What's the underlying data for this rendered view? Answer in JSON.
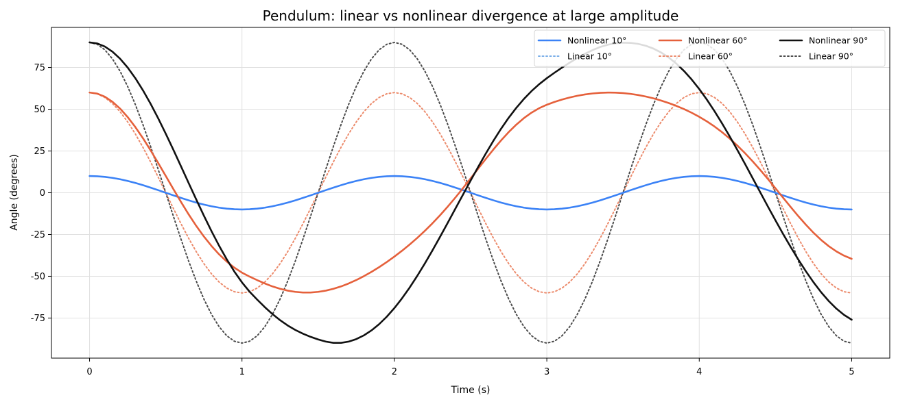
{
  "chart_data": {
    "type": "line",
    "title": "Pendulum: linear vs nonlinear divergence at large amplitude",
    "xlabel": "Time (s)",
    "ylabel": "Angle (degrees)",
    "xlim": [
      -0.25,
      5.25
    ],
    "ylim": [
      -99,
      99
    ],
    "x_ticks": [
      0,
      1,
      2,
      3,
      4,
      5
    ],
    "y_ticks": [
      -75,
      -50,
      -25,
      0,
      25,
      50,
      75
    ],
    "x_tick_labels": [
      "0",
      "1",
      "2",
      "3",
      "4",
      "5"
    ],
    "y_tick_labels": [
      "-75",
      "-50",
      "-25",
      "0",
      "25",
      "50",
      "75"
    ],
    "grid": true,
    "legend": {
      "placement": "top-right",
      "columns": 3
    },
    "time_step": 0.05,
    "series": [
      {
        "name": "Nonlinear 10°",
        "style": "solid",
        "color": "#3b82f6",
        "values": [
          10.0,
          9.88,
          9.51,
          8.91,
          8.09,
          7.07,
          5.88,
          4.54,
          3.09,
          1.56,
          0.0,
          -1.56,
          -3.09,
          -4.54,
          -5.88,
          -7.07,
          -8.09,
          -8.91,
          -9.51,
          -9.88,
          -10.0,
          -9.88,
          -9.51,
          -8.91,
          -8.09,
          -7.07,
          -5.88,
          -4.54,
          -3.09,
          -1.56,
          0.0,
          1.56,
          3.09,
          4.54,
          5.88,
          7.07,
          8.09,
          8.91,
          9.51,
          9.88,
          10.0,
          9.88,
          9.51,
          8.91,
          8.09,
          7.07,
          5.88,
          4.54,
          3.09,
          1.56,
          0.0,
          -1.56,
          -3.09,
          -4.54,
          -5.88,
          -7.07,
          -8.09,
          -8.91,
          -9.51,
          -9.88,
          -10.0,
          -9.88,
          -9.51,
          -8.91,
          -8.09,
          -7.07,
          -5.88,
          -4.54,
          -3.09,
          -1.56,
          0.0,
          1.56,
          3.09,
          4.54,
          5.88,
          7.07,
          8.09,
          8.91,
          9.51,
          9.88,
          10.0,
          9.88,
          9.51,
          8.91,
          8.09,
          7.07,
          5.88,
          4.54,
          3.09,
          1.56,
          0.0,
          -1.56,
          -3.09,
          -4.54,
          -5.88,
          -7.07,
          -8.09,
          -8.91,
          -9.51,
          -9.88,
          -10.0
        ]
      },
      {
        "name": "Linear 10°",
        "style": "dotted",
        "color": "#7aaee8",
        "values": [
          10.0,
          9.88,
          9.51,
          8.91,
          8.09,
          7.07,
          5.88,
          4.54,
          3.09,
          1.56,
          0.0,
          -1.56,
          -3.09,
          -4.54,
          -5.88,
          -7.07,
          -8.09,
          -8.91,
          -9.51,
          -9.88,
          -10.0,
          -9.88,
          -9.51,
          -8.91,
          -8.09,
          -7.07,
          -5.88,
          -4.54,
          -3.09,
          -1.56,
          0.0,
          1.56,
          3.09,
          4.54,
          5.88,
          7.07,
          8.09,
          8.91,
          9.51,
          9.88,
          10.0,
          9.88,
          9.51,
          8.91,
          8.09,
          7.07,
          5.88,
          4.54,
          3.09,
          1.56,
          0.0,
          -1.56,
          -3.09,
          -4.54,
          -5.88,
          -7.07,
          -8.09,
          -8.91,
          -9.51,
          -9.88,
          -10.0,
          -9.88,
          -9.51,
          -8.91,
          -8.09,
          -7.07,
          -5.88,
          -4.54,
          -3.09,
          -1.56,
          0.0,
          1.56,
          3.09,
          4.54,
          5.88,
          7.07,
          8.09,
          8.91,
          9.51,
          9.88,
          10.0,
          9.88,
          9.51,
          8.91,
          8.09,
          7.07,
          5.88,
          4.54,
          3.09,
          1.56,
          0.0,
          -1.56,
          -3.09,
          -4.54,
          -5.88,
          -7.07,
          -8.09,
          -8.91,
          -9.51,
          -9.88,
          -10.0
        ]
      },
      {
        "name": "Nonlinear 60°",
        "style": "solid",
        "color": "#e5603b",
        "values": [
          60.0,
          59.38,
          57.53,
          54.51,
          50.41,
          45.32,
          39.37,
          32.7,
          25.47,
          17.86,
          10.03,
          2.18,
          -5.52,
          -12.92,
          -19.85,
          -26.17,
          -31.86,
          -36.87,
          -41.19,
          -44.83,
          -47.83,
          -50.21,
          -52.32,
          -54.31,
          -56.07,
          -57.51,
          -58.6,
          -59.34,
          -59.71,
          -59.71,
          -59.34,
          -58.6,
          -57.51,
          -56.07,
          -54.31,
          -52.26,
          -49.93,
          -47.35,
          -44.53,
          -41.48,
          -38.21,
          -34.72,
          -31.0,
          -27.03,
          -22.79,
          -18.26,
          -13.42,
          -8.29,
          -2.88,
          2.76,
          8.57,
          14.45,
          20.29,
          25.97,
          31.36,
          36.34,
          40.81,
          44.7,
          47.98,
          50.64,
          52.69,
          54.38,
          55.82,
          57.04,
          58.05,
          58.85,
          59.44,
          59.81,
          59.98,
          59.93,
          59.66,
          59.19,
          58.5,
          57.6,
          56.5,
          55.2,
          53.7,
          52.0,
          50.07,
          47.91,
          45.47,
          42.73,
          39.67,
          36.24,
          32.44,
          28.26,
          23.72,
          18.84,
          13.68,
          8.27,
          2.71,
          -2.93,
          -8.54,
          -14.0,
          -19.18,
          -23.97,
          -28.27,
          -32.0,
          -35.13,
          -37.65,
          -39.56
        ]
      },
      {
        "name": "Linear 60°",
        "style": "dotted",
        "color": "#ec8b6c",
        "values": [
          60.0,
          59.26,
          57.06,
          53.46,
          48.54,
          42.43,
          35.27,
          27.24,
          18.54,
          9.39,
          0.0,
          -9.39,
          -18.54,
          -27.24,
          -35.27,
          -42.43,
          -48.54,
          -53.46,
          -57.06,
          -59.26,
          -60.0,
          -59.26,
          -57.06,
          -53.46,
          -48.54,
          -42.43,
          -35.27,
          -27.24,
          -18.54,
          -9.39,
          0.0,
          9.39,
          18.54,
          27.24,
          35.27,
          42.43,
          48.54,
          53.46,
          57.06,
          59.26,
          60.0,
          59.26,
          57.06,
          53.46,
          48.54,
          42.43,
          35.27,
          27.24,
          18.54,
          9.39,
          0.0,
          -9.39,
          -18.54,
          -27.24,
          -35.27,
          -42.43,
          -48.54,
          -53.46,
          -57.06,
          -59.26,
          -60.0,
          -59.26,
          -57.06,
          -53.46,
          -48.54,
          -42.43,
          -35.27,
          -27.24,
          -18.54,
          -9.39,
          0.0,
          9.39,
          18.54,
          27.24,
          35.27,
          42.43,
          48.54,
          53.46,
          57.06,
          59.26,
          60.0,
          59.26,
          57.06,
          53.46,
          48.54,
          42.43,
          35.27,
          27.24,
          18.54,
          9.39,
          0.0,
          -9.39,
          -18.54,
          -27.24,
          -35.27,
          -42.43,
          -48.54,
          -53.46,
          -57.06,
          -59.26,
          -60.0
        ]
      },
      {
        "name": "Nonlinear 90°",
        "style": "solid",
        "color": "#111111",
        "values": [
          90.0,
          89.38,
          87.53,
          84.48,
          80.27,
          74.96,
          68.63,
          61.38,
          53.33,
          44.6,
          35.34,
          25.69,
          15.81,
          5.85,
          -4.03,
          -13.69,
          -22.98,
          -31.74,
          -39.84,
          -47.18,
          -53.66,
          -59.23,
          -64.0,
          -68.5,
          -72.63,
          -76.29,
          -79.47,
          -82.14,
          -84.37,
          -86.25,
          -87.84,
          -89.1,
          -89.86,
          -89.86,
          -89.1,
          -87.61,
          -85.37,
          -82.38,
          -78.66,
          -74.2,
          -69.04,
          -63.2,
          -56.76,
          -49.76,
          -42.3,
          -34.45,
          -26.31,
          -17.98,
          -9.55,
          -1.11,
          7.28,
          15.53,
          23.53,
          31.18,
          38.34,
          44.92,
          50.87,
          56.19,
          60.89,
          65.0,
          68.59,
          71.84,
          74.95,
          77.89,
          80.65,
          83.18,
          85.41,
          87.26,
          88.62,
          89.47,
          89.83,
          89.72,
          89.11,
          87.98,
          86.28,
          83.95,
          80.96,
          77.28,
          72.9,
          67.83,
          62.1,
          55.75,
          48.86,
          41.48,
          33.71,
          25.62,
          17.3,
          8.83,
          0.31,
          -8.17,
          -16.51,
          -24.64,
          -32.5,
          -40.0,
          -47.07,
          -53.63,
          -59.59,
          -64.87,
          -69.4,
          -73.13,
          -76.0
        ]
      },
      {
        "name": "Linear 90°",
        "style": "dotted",
        "color": "#4a4a4a",
        "values": [
          90.0,
          88.89,
          85.6,
          80.19,
          72.81,
          63.64,
          52.9,
          40.86,
          27.81,
          14.08,
          0.0,
          -14.08,
          -27.81,
          -40.86,
          -52.9,
          -63.64,
          -72.81,
          -80.19,
          -85.6,
          -88.89,
          -90.0,
          -88.89,
          -85.6,
          -80.19,
          -72.81,
          -63.64,
          -52.9,
          -40.86,
          -27.81,
          -14.08,
          0.0,
          14.08,
          27.81,
          40.86,
          52.9,
          63.64,
          72.81,
          80.19,
          85.6,
          88.89,
          90.0,
          88.89,
          85.6,
          80.19,
          72.81,
          63.64,
          52.9,
          40.86,
          27.81,
          14.08,
          0.0,
          -14.08,
          -27.81,
          -40.86,
          -52.9,
          -63.64,
          -72.81,
          -80.19,
          -85.6,
          -88.89,
          -90.0,
          -88.89,
          -85.6,
          -80.19,
          -72.81,
          -63.64,
          -52.9,
          -40.86,
          -27.81,
          -14.08,
          0.0,
          14.08,
          27.81,
          40.86,
          52.9,
          63.64,
          72.81,
          80.19,
          85.6,
          88.89,
          90.0,
          88.89,
          85.6,
          80.19,
          72.81,
          63.64,
          52.9,
          40.86,
          27.81,
          14.08,
          0.0,
          -14.08,
          -27.81,
          -40.86,
          -52.9,
          -63.64,
          -72.81,
          -80.19,
          -85.6,
          -88.89,
          -90.0
        ]
      }
    ]
  }
}
